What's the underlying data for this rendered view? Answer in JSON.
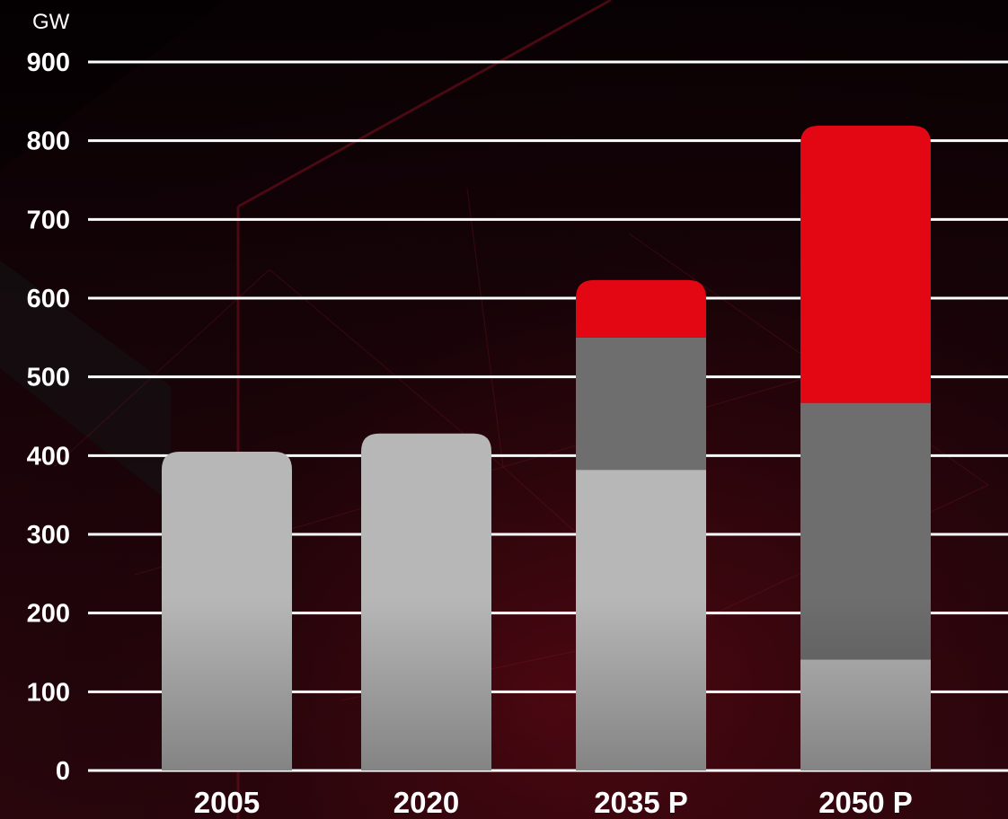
{
  "chart_data": {
    "type": "bar",
    "stacked": true,
    "ylabel": "GW",
    "ylim": [
      0,
      900
    ],
    "yticks": [
      0,
      100,
      200,
      300,
      400,
      500,
      600,
      700,
      800,
      900
    ],
    "grid": true,
    "categories": [
      "2005",
      "2020",
      "2035 P",
      "2050 P"
    ],
    "series": [
      {
        "color": "#b7b7b7",
        "values": [
          405,
          428,
          382,
          141
        ]
      },
      {
        "color": "#6e6e6e",
        "values": [
          0,
          0,
          168,
          326
        ]
      },
      {
        "color": "#e30613",
        "values": [
          0,
          0,
          73,
          352
        ]
      }
    ]
  }
}
